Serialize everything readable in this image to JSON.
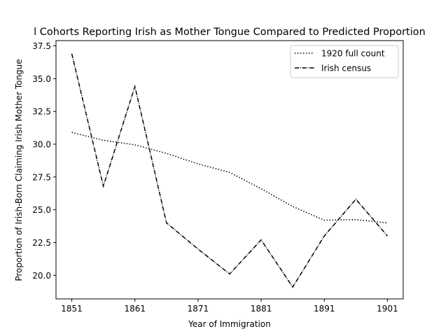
{
  "chart_data": {
    "type": "line",
    "title": "l Cohorts Reporting Irish as Mother Tongue Compared to Predicted Proportion",
    "xlabel": "Year of Immigration",
    "ylabel": "Proportion of Irish-Born Claiming Irish Mother Tongue",
    "x": [
      1851,
      1856,
      1861,
      1866,
      1871,
      1876,
      1881,
      1886,
      1891,
      1896,
      1901
    ],
    "xlim": [
      1848.5,
      1903.5
    ],
    "ylim": [
      18.2,
      37.9
    ],
    "xticks": [
      1851,
      1861,
      1871,
      1881,
      1891,
      1901
    ],
    "yticks": [
      20.0,
      22.5,
      25.0,
      27.5,
      30.0,
      32.5,
      35.0,
      37.5
    ],
    "ytick_labels": [
      "20.0",
      "22.5",
      "25.0",
      "27.5",
      "30.0",
      "32.5",
      "35.0",
      "37.5"
    ],
    "grid": false,
    "legend_position": "top-right",
    "series": [
      {
        "name": "1920 full count",
        "style": "dotted",
        "color": "#000000",
        "values": [
          30.9,
          30.3,
          29.95,
          29.3,
          28.5,
          27.85,
          26.6,
          25.25,
          24.2,
          24.25,
          24.0
        ]
      },
      {
        "name": "Irish census",
        "style": "dashdot",
        "color": "#000000",
        "values": [
          36.9,
          26.8,
          34.4,
          24.0,
          22.0,
          20.1,
          22.7,
          19.1,
          23.0,
          25.8,
          23.0
        ]
      }
    ]
  }
}
